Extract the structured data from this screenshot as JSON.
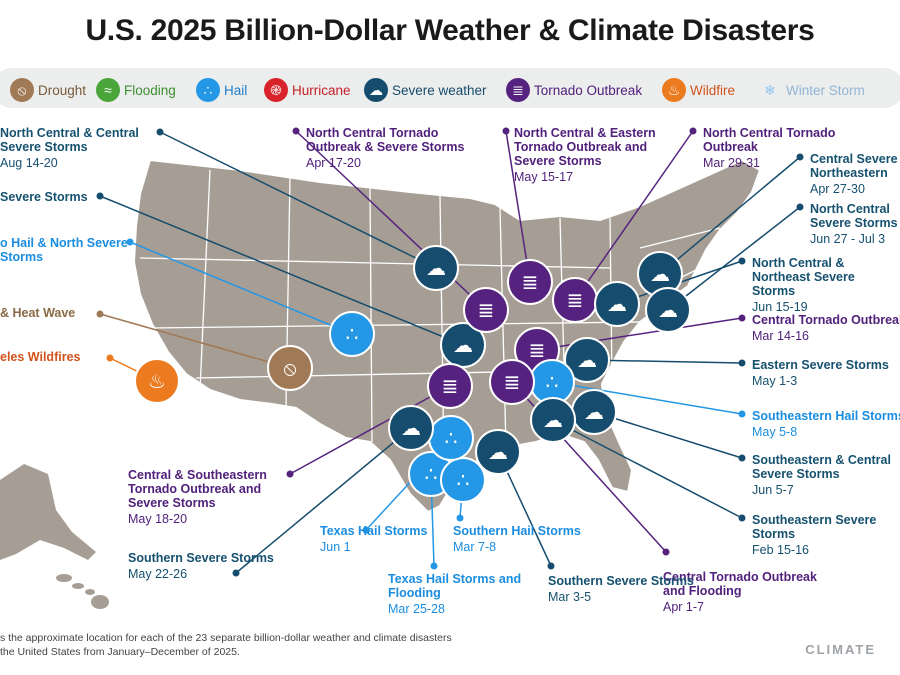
{
  "title": "U.S. 2025 Billion-Dollar Weather & Climate Disasters",
  "legend": [
    {
      "key": "drought",
      "label": "Drought",
      "color": "#a07a57",
      "icon": "drought-icon"
    },
    {
      "key": "flooding",
      "label": "Flooding",
      "color": "#4aa63b",
      "icon": "flooding-icon"
    },
    {
      "key": "hail",
      "label": "Hail",
      "color": "#2497e6",
      "icon": "hail-icon"
    },
    {
      "key": "hurricane",
      "label": "Hurricane",
      "color": "#d8232a",
      "icon": "hurricane-icon"
    },
    {
      "key": "severe",
      "label": "Severe weather",
      "color": "#164d6e",
      "icon": "severe-weather-icon"
    },
    {
      "key": "tornado",
      "label": "Tornado Outbreak",
      "color": "#55237f",
      "icon": "tornado-icon"
    },
    {
      "key": "wildfire",
      "label": "Wildfire",
      "color": "#ec7a1f",
      "icon": "wildfire-icon"
    },
    {
      "key": "winter",
      "label": "Winter Storm",
      "color": "#8fc6ee",
      "icon": "snowflake-icon"
    }
  ],
  "events": [
    {
      "name": "North Central & Central Severe Storms",
      "date": "Aug 14-20",
      "type": "severe"
    },
    {
      "name": "Severe Storms",
      "date": "",
      "type": "severe"
    },
    {
      "name": "o Hail & North Severe Storms",
      "date": "",
      "type": "hail"
    },
    {
      "name": "& Heat Wave",
      "date": "",
      "type": "drought"
    },
    {
      "name": "eles Wildfires",
      "date": "",
      "type": "wildfire"
    },
    {
      "name": "North Central Tornado Outbreak & Severe Storms",
      "date": "Apr 17-20",
      "type": "tornado"
    },
    {
      "name": "North Central & Eastern Tornado Outbreak and Severe Storms",
      "date": "May 15-17",
      "type": "tornado"
    },
    {
      "name": "North Central Tornado Outbreak",
      "date": "Mar 29-31",
      "type": "tornado"
    },
    {
      "name": "Central Severe Northeastern",
      "date": "Apr 27-30",
      "type": "severe"
    },
    {
      "name": "North Central Severe Storms",
      "date": "Jun 27 - Jul 3",
      "type": "severe"
    },
    {
      "name": "North Central & Northeast Severe Storms",
      "date": "Jun 15-19",
      "type": "severe"
    },
    {
      "name": "Central Tornado Outbreak",
      "date": "Mar 14-16",
      "type": "tornado"
    },
    {
      "name": "Eastern Severe Storms",
      "date": "May 1-3",
      "type": "severe"
    },
    {
      "name": "Southeastern Hail Storms",
      "date": "May 5-8",
      "type": "hail"
    },
    {
      "name": "Southeastern & Central Severe Storms",
      "date": "Jun 5-7",
      "type": "severe"
    },
    {
      "name": "Southeastern Severe Storms",
      "date": "Feb 15-16",
      "type": "severe"
    },
    {
      "name": "Central Tornado Outbreak and Flooding",
      "date": "Apr 1-7",
      "type": "tornado"
    },
    {
      "name": "Southern Severe Storms",
      "date": "Mar 3-5",
      "type": "severe"
    },
    {
      "name": "Texas Hail Storms and Flooding",
      "date": "Mar 25-28",
      "type": "hail"
    },
    {
      "name": "Southern Hail Storms",
      "date": "Mar 7-8",
      "type": "hail"
    },
    {
      "name": "Texas Hail Storms",
      "date": "Jun 1",
      "type": "hail"
    },
    {
      "name": "Central & Southeastern Tornado Outbreak and Severe Storms",
      "date": "May 18-20",
      "type": "tornado"
    },
    {
      "name": "Southern Severe Storms",
      "date": "May 22-26",
      "type": "severe"
    }
  ],
  "footer": {
    "line1": "s the approximate location for each of the 23 separate billion-dollar weather and climate disasters",
    "line2": "the United States from January–December of 2025."
  },
  "brand": "CLIMATE"
}
